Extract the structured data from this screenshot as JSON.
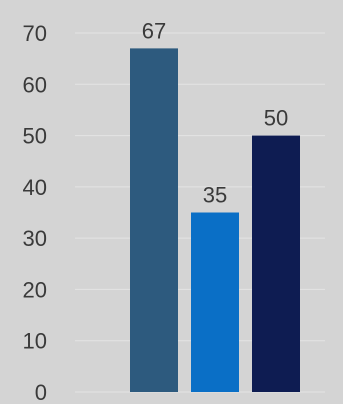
{
  "chart_data": {
    "type": "bar",
    "categories": [
      "",
      "",
      ""
    ],
    "values": [
      67,
      35,
      50
    ],
    "colors": [
      "#2d5a7e",
      "#0a6fc6",
      "#0e1c52"
    ],
    "title": "",
    "xlabel": "",
    "ylabel": "",
    "ylim": [
      0,
      70
    ],
    "yticks": [
      0,
      10,
      20,
      30,
      40,
      50,
      60,
      70
    ],
    "data_labels": [
      "67",
      "35",
      "50"
    ],
    "grid": true,
    "background": "#d4d4d4"
  }
}
